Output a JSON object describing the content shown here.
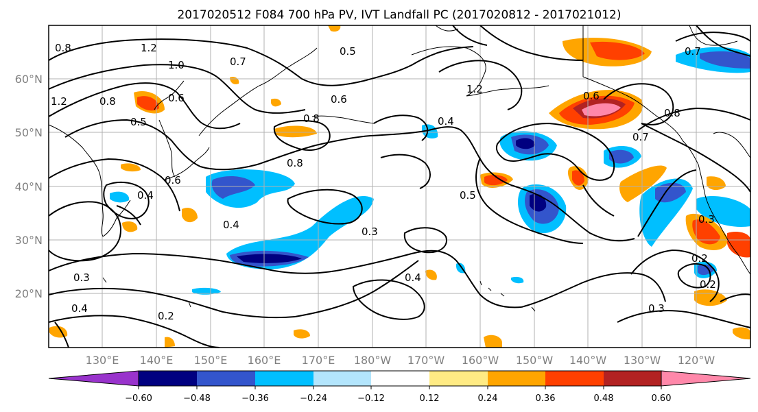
{
  "title": "2017020512 F084 700 hPa PV, IVT Landfall PC (2017020812 - 2017021012)",
  "lat_labels": [
    "60°N",
    "50°N",
    "40°N",
    "30°N",
    "20°N"
  ],
  "lon_labels": [
    "130°E",
    "140°E",
    "150°E",
    "160°E",
    "170°E",
    "180°W",
    "170°W",
    "160°W",
    "150°W",
    "140°W",
    "130°W",
    "120°W"
  ],
  "colorbar": {
    "ticks": [
      "−0.60",
      "−0.48",
      "−0.36",
      "−0.24",
      "−0.12",
      "0.12",
      "0.24",
      "0.36",
      "0.48",
      "0.60"
    ],
    "colors": [
      "#9933cc",
      "#000080",
      "#3355cc",
      "#00bfff",
      "#b3e5fc",
      "#ffffff",
      "#ffeb84",
      "#ffa500",
      "#ff4000",
      "#b22222",
      "#ff88aa"
    ]
  },
  "contour_labels": [
    "1.2",
    "1.0",
    "0.7",
    "0.5",
    "0.6",
    "0.8",
    "1.2",
    "0.6",
    "0.5",
    "0.8",
    "0.4",
    "0.7",
    "0.8",
    "0.6",
    "0.4",
    "0.5",
    "0.3",
    "0.4",
    "0.3",
    "0.4",
    "0.2",
    "0.3",
    "0.4",
    "0.2",
    "0.3",
    "0.2",
    "0.7",
    "0.8",
    "0.6",
    "0.8",
    "1.2"
  ],
  "map": {
    "lat_range": [
      10,
      70
    ],
    "lon_range_east": [
      120,
      250
    ],
    "gridlines": true
  }
}
